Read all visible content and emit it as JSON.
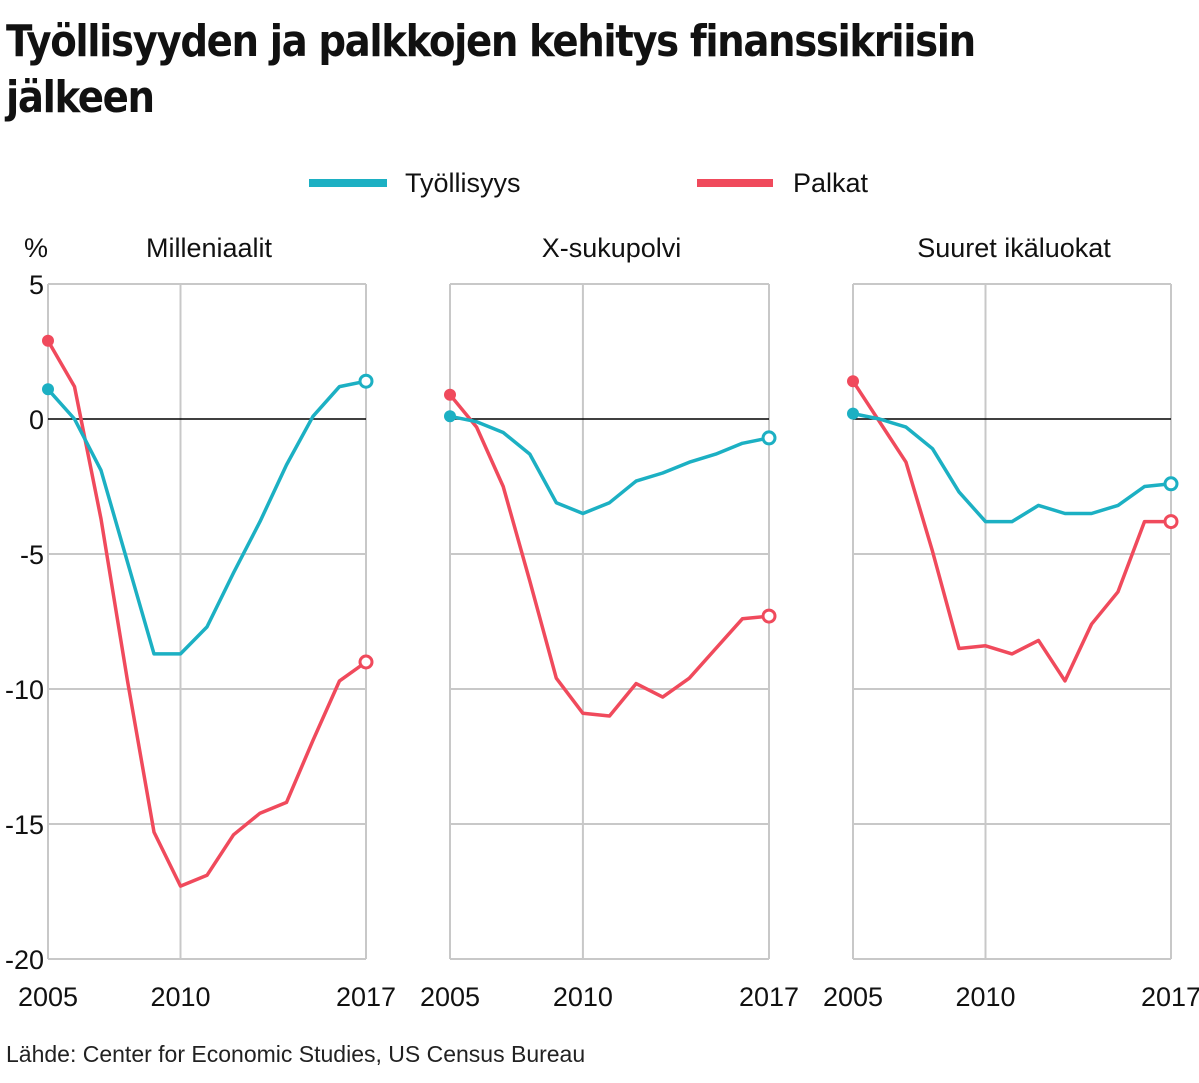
{
  "title": "Työllisyyden ja palkkojen kehitys finanssikriisin jälkeen",
  "source": "Lähde: Center for Economic Studies, US Census Bureau",
  "colors": {
    "employment": "#1cb0c3",
    "wages": "#f04a5c",
    "grid": "#c8c8c8",
    "zero": "#000000"
  },
  "chart_data": {
    "type": "line",
    "ylabel": "%",
    "ylim": [
      -20,
      5
    ],
    "yticks": [
      5,
      0,
      -5,
      -10,
      -15,
      -20
    ],
    "xlim": [
      2005,
      2017
    ],
    "xticks": [
      2005,
      2010,
      2017
    ],
    "legend": {
      "placement": "top",
      "items": [
        {
          "name": "Työllisyys",
          "color": "#1cb0c3"
        },
        {
          "name": "Palkat",
          "color": "#f04a5c"
        }
      ]
    },
    "grid": true,
    "panels": [
      {
        "title": "Milleniaalit",
        "series": [
          {
            "name": "Työllisyys",
            "x": [
              2005,
              2006,
              2007,
              2008,
              2009,
              2010,
              2011,
              2012,
              2013,
              2014,
              2015,
              2016,
              2017
            ],
            "y": [
              1.1,
              0,
              -1.9,
              -5.3,
              -8.7,
              -8.7,
              -7.7,
              -5.7,
              -3.8,
              -1.7,
              0.1,
              1.2,
              1.4
            ]
          },
          {
            "name": "Palkat",
            "x": [
              2005,
              2006,
              2007,
              2008,
              2009,
              2010,
              2011,
              2012,
              2013,
              2014,
              2015,
              2016,
              2017
            ],
            "y": [
              2.9,
              1.2,
              -3.7,
              -9.7,
              -15.3,
              -17.3,
              -16.9,
              -15.4,
              -14.6,
              -14.2,
              -11.9,
              -9.7,
              -9.0
            ]
          }
        ]
      },
      {
        "title": "X-sukupolvi",
        "series": [
          {
            "name": "Työllisyys",
            "x": [
              2005,
              2006,
              2007,
              2008,
              2009,
              2010,
              2011,
              2012,
              2013,
              2014,
              2015,
              2016,
              2017
            ],
            "y": [
              0.1,
              -0.1,
              -0.5,
              -1.3,
              -3.1,
              -3.5,
              -3.1,
              -2.3,
              -2.0,
              -1.6,
              -1.3,
              -0.9,
              -0.7
            ]
          },
          {
            "name": "Palkat",
            "x": [
              2005,
              2006,
              2007,
              2008,
              2009,
              2010,
              2011,
              2012,
              2013,
              2014,
              2015,
              2016,
              2017
            ],
            "y": [
              0.9,
              -0.3,
              -2.5,
              -6.0,
              -9.6,
              -10.9,
              -11.0,
              -9.8,
              -10.3,
              -9.6,
              -8.5,
              -7.4,
              -7.3
            ]
          }
        ]
      },
      {
        "title": "Suuret ikäluokat",
        "series": [
          {
            "name": "Työllisyys",
            "x": [
              2005,
              2006,
              2007,
              2008,
              2009,
              2010,
              2011,
              2012,
              2013,
              2014,
              2015,
              2016,
              2017
            ],
            "y": [
              0.2,
              0,
              -0.3,
              -1.1,
              -2.7,
              -3.8,
              -3.8,
              -3.2,
              -3.5,
              -3.5,
              -3.2,
              -2.5,
              -2.4
            ]
          },
          {
            "name": "Palkat",
            "x": [
              2005,
              2006,
              2007,
              2008,
              2009,
              2010,
              2011,
              2012,
              2013,
              2014,
              2015,
              2016,
              2017
            ],
            "y": [
              1.4,
              -0.1,
              -1.6,
              -4.9,
              -8.5,
              -8.4,
              -8.7,
              -8.2,
              -9.7,
              -7.6,
              -6.4,
              -3.8,
              -3.8
            ]
          }
        ]
      }
    ]
  }
}
